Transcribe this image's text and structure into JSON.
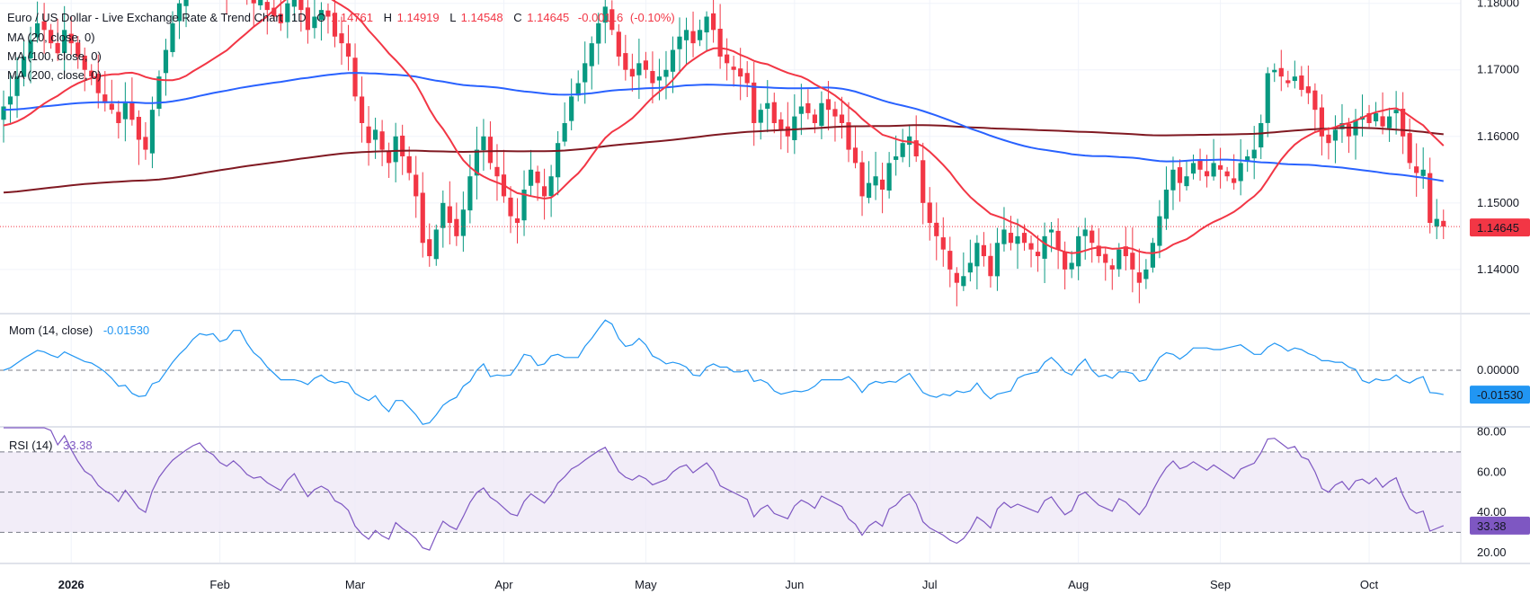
{
  "chart_data": [
    {
      "type": "candlestick",
      "title": "Euro / US Dollar - Live Exchange Rate & Trend Chart",
      "timeframe": "1D",
      "ohlc_header": {
        "o_label": "O",
        "o": "1.14761",
        "h_label": "H",
        "h": "1.14919",
        "l_label": "L",
        "l": "1.14548",
        "c_label": "C",
        "c": "1.14645",
        "change": "-0.00116",
        "change_pct": "(-0.10%)"
      },
      "indicators": [
        "MA (20, close, 0)",
        "MA (100, close, 0)",
        "MA (200, close, 0)"
      ],
      "last_price_label": "1.14645",
      "last_price": 1.14645,
      "ylim": [
        1.1335,
        1.1805
      ],
      "y_ticks": [
        {
          "value": 1.14,
          "label": "1.14000"
        },
        {
          "value": 1.15,
          "label": "1.15000"
        },
        {
          "value": 1.16,
          "label": "1.16000"
        },
        {
          "value": 1.17,
          "label": "1.17000"
        },
        {
          "value": 1.18,
          "label": "1.18000"
        }
      ],
      "x_ticks": [
        "2026",
        "Feb",
        "Mar",
        "Apr",
        "May",
        "Jun",
        "Jul",
        "Aug",
        "Sep",
        "Oct"
      ],
      "x_tick_index": [
        10,
        32,
        52,
        74,
        95,
        117,
        137,
        159,
        180,
        202
      ],
      "close_series": [
        1.1645,
        1.166,
        1.169,
        1.172,
        1.1745,
        1.177,
        1.176,
        1.174,
        1.1725,
        1.176,
        1.174,
        1.172,
        1.17,
        1.169,
        1.1665,
        1.165,
        1.164,
        1.162,
        1.165,
        1.1625,
        1.1595,
        1.158,
        1.164,
        1.169,
        1.173,
        1.177,
        1.18,
        1.183,
        1.186,
        1.188,
        1.186,
        1.185,
        1.183,
        1.182,
        1.1845,
        1.183,
        1.181,
        1.18,
        1.1805,
        1.179,
        1.178,
        1.177,
        1.18,
        1.182,
        1.179,
        1.176,
        1.178,
        1.179,
        1.178,
        1.175,
        1.174,
        1.172,
        1.166,
        1.162,
        1.159,
        1.161,
        1.158,
        1.156,
        1.16,
        1.157,
        1.1545,
        1.151,
        1.144,
        1.142,
        1.146,
        1.15,
        1.147,
        1.145,
        1.149,
        1.154,
        1.158,
        1.16,
        1.156,
        1.154,
        1.151,
        1.148,
        1.147,
        1.152,
        1.155,
        1.153,
        1.151,
        1.154,
        1.159,
        1.162,
        1.166,
        1.168,
        1.171,
        1.174,
        1.177,
        1.1795,
        1.176,
        1.172,
        1.17,
        1.169,
        1.171,
        1.17,
        1.168,
        1.169,
        1.17,
        1.173,
        1.175,
        1.176,
        1.174,
        1.176,
        1.178,
        1.176,
        1.172,
        1.171,
        1.17,
        1.169,
        1.168,
        1.162,
        1.164,
        1.165,
        1.162,
        1.161,
        1.16,
        1.163,
        1.1645,
        1.1635,
        1.162,
        1.165,
        1.164,
        1.163,
        1.162,
        1.158,
        1.156,
        1.151,
        1.153,
        1.154,
        1.152,
        1.156,
        1.157,
        1.159,
        1.16,
        1.157,
        1.15,
        1.147,
        1.145,
        1.143,
        1.14,
        1.138,
        1.139,
        1.141,
        1.144,
        1.142,
        1.139,
        1.144,
        1.146,
        1.144,
        1.145,
        1.144,
        1.143,
        1.142,
        1.145,
        1.146,
        1.143,
        1.14,
        1.141,
        1.145,
        1.146,
        1.144,
        1.142,
        1.141,
        1.14,
        1.143,
        1.142,
        1.14,
        1.138,
        1.14,
        1.144,
        1.148,
        1.152,
        1.155,
        1.153,
        1.154,
        1.156,
        1.155,
        1.154,
        1.156,
        1.155,
        1.154,
        1.153,
        1.156,
        1.157,
        1.158,
        1.162,
        1.1695,
        1.17,
        1.169,
        1.168,
        1.169,
        1.167,
        1.1665,
        1.164,
        1.16,
        1.159,
        1.161,
        1.162,
        1.16,
        1.1625,
        1.163,
        1.162,
        1.1635,
        1.1615,
        1.163,
        1.164,
        1.16,
        1.156,
        1.1545,
        1.155,
        1.147,
        1.1476,
        1.14645
      ]
    },
    {
      "type": "line",
      "title": "Mom (14, close)",
      "current_value_label": "-0.01530",
      "current_value": -0.0153,
      "zero_label": "0.00000",
      "ylim": [
        -0.035,
        0.035
      ]
    },
    {
      "type": "line",
      "title": "RSI (14)",
      "current_value_label": "33.38",
      "current_value": 33.38,
      "ylim": [
        15,
        82
      ],
      "band": [
        30,
        70
      ],
      "mid": 50,
      "y_ticks": [
        {
          "value": 20,
          "label": "20.00"
        },
        {
          "value": 40,
          "label": "40.00"
        },
        {
          "value": 60,
          "label": "60.00"
        },
        {
          "value": 80,
          "label": "80.00"
        }
      ]
    }
  ],
  "colors": {
    "up": "#089981",
    "down": "#f23645",
    "ma20": "#f23645",
    "ma100": "#2962ff",
    "ma200": "#801922",
    "mom": "#2196f3",
    "rsi": "#7e57c2",
    "rsi_band": "#ede7f6",
    "axis_text": "#131722",
    "grid": "#f0f3fa",
    "pane_border": "#e0e3eb"
  }
}
